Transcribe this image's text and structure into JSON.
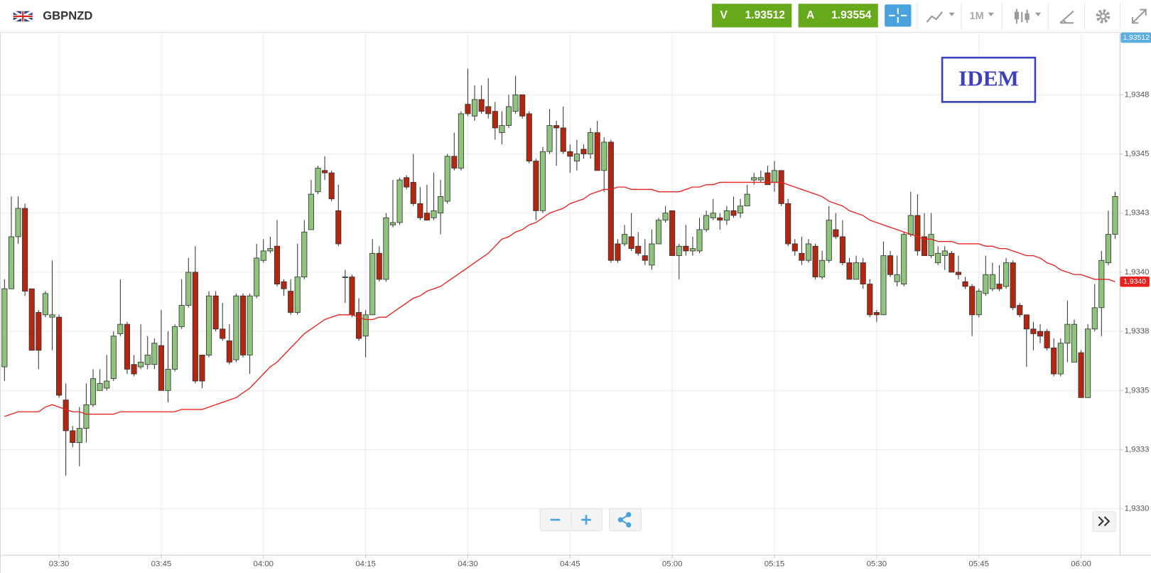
{
  "header": {
    "symbol": "GBPNZD",
    "sell": {
      "label": "V",
      "price": "1.93512"
    },
    "buy": {
      "label": "A",
      "price": "1.93554"
    },
    "timeframe": "1M"
  },
  "chart_data": {
    "type": "candlestick",
    "categories": [
      null,
      null,
      null,
      null,
      null,
      null,
      null,
      null,
      "03:30",
      null,
      null,
      null,
      null,
      null,
      null,
      null,
      null,
      null,
      null,
      null,
      null,
      null,
      null,
      "03:45",
      null,
      null,
      null,
      null,
      null,
      null,
      null,
      null,
      null,
      null,
      null,
      null,
      null,
      null,
      "04:00",
      null,
      null,
      null,
      null,
      null,
      null,
      null,
      null,
      null,
      null,
      null,
      null,
      null,
      null,
      "04:15",
      null,
      null,
      null,
      null,
      null,
      null,
      null,
      null,
      null,
      null,
      null,
      null,
      null,
      null,
      "04:30",
      null,
      null,
      null,
      null,
      null,
      null,
      null,
      null,
      null,
      null,
      null,
      null,
      null,
      null,
      "04:45",
      null,
      null,
      null,
      null,
      null,
      null,
      null,
      null,
      null,
      null,
      null,
      null,
      null,
      null,
      "05:00",
      null,
      null,
      null,
      null,
      null,
      null,
      null,
      null,
      null,
      null,
      null,
      null,
      null,
      null,
      "05:15",
      null,
      null,
      null,
      null,
      null,
      null,
      null,
      null,
      null,
      null,
      null,
      null,
      null,
      null,
      "05:30",
      null,
      null,
      null,
      null,
      null,
      null,
      null,
      null,
      null,
      null,
      null,
      null,
      null,
      null,
      "05:45",
      null,
      null,
      null,
      null,
      null,
      null,
      null,
      null,
      null,
      null,
      null,
      null,
      null,
      null,
      "06:00",
      null,
      null,
      null,
      null,
      null
    ],
    "open": [
      1.9336,
      1.93393,
      1.93415,
      1.93427,
      1.93393,
      1.93383,
      1.93382,
      1.93381,
      1.93381,
      1.93346,
      1.93333,
      1.93328,
      1.93334,
      1.93344,
      1.9335,
      1.93351,
      1.93355,
      1.93374,
      1.93378,
      1.93361,
      1.9336,
      1.93361,
      1.93361,
      1.93369,
      1.9335,
      1.93359,
      1.93377,
      1.93386,
      1.934,
      1.93365,
      1.93365,
      1.9339,
      1.93376,
      1.93371,
      1.93363,
      1.9339,
      1.93365,
      1.9339,
      1.93405,
      1.93409,
      1.93411,
      1.93396,
      1.93392,
      1.93383,
      1.93398,
      1.93418,
      1.93434,
      1.93443,
      1.93442,
      1.93426,
      1.93398,
      1.93398,
      1.93383,
      1.93373,
      1.93382,
      1.93408,
      1.93397,
      1.9342,
      1.93421,
      1.9344,
      1.93438,
      1.93429,
      1.93425,
      1.93423,
      1.93425,
      1.9343,
      1.93449,
      1.93444,
      1.93471,
      1.93466,
      1.93473,
      1.9347,
      1.93468,
      1.93459,
      1.93462,
      1.93468,
      1.93475,
      1.93467,
      1.93447,
      1.93426,
      1.93451,
      1.93462,
      1.93461,
      1.93451,
      1.93447,
      1.93452,
      1.9345,
      1.93459,
      1.93443,
      1.93455,
      1.93412,
      1.93412,
      1.93415,
      1.93411,
      1.93407,
      1.93403,
      1.93412,
      1.93422,
      1.93426,
      1.93407,
      1.93411,
      1.93409,
      1.93409,
      1.93418,
      1.93423,
      1.93423,
      1.93422,
      1.93426,
      1.93425,
      1.93428,
      1.93439,
      1.93439,
      1.93442,
      1.93438,
      1.93443,
      1.93429,
      1.93412,
      1.93408,
      1.93405,
      1.93411,
      1.93398,
      1.93405,
      1.93418,
      1.93415,
      1.93404,
      1.93397,
      1.93404,
      1.93395,
      1.93383,
      1.93382,
      1.93407,
      1.93396,
      1.93395,
      1.93416,
      1.93424,
      1.93415,
      1.93407,
      1.93404,
      1.93407,
      1.93408,
      1.934,
      1.93396,
      1.93394,
      1.93382,
      1.93391,
      1.93393,
      1.93395,
      1.93394,
      1.93404,
      1.93386,
      1.93382,
      1.93376,
      1.93375,
      1.93375,
      1.93368,
      1.93357,
      1.9337,
      1.93362,
      1.93366,
      1.93347,
      1.93376,
      1.93385,
      1.93404,
      1.93416
    ],
    "high": [
      1.93397,
      1.93432,
      1.93432,
      1.93429,
      1.93393,
      1.93384,
      1.93392,
      1.93405,
      1.93382,
      1.93353,
      1.93335,
      1.93343,
      1.93353,
      1.93359,
      1.93359,
      1.93365,
      1.93375,
      1.93397,
      1.93379,
      1.93365,
      1.93378,
      1.93373,
      1.93372,
      1.93384,
      1.93375,
      1.93378,
      1.93397,
      1.93406,
      1.93411,
      1.93365,
      1.93392,
      1.93392,
      1.93387,
      1.93378,
      1.93391,
      1.93391,
      1.93391,
      1.93412,
      1.93414,
      1.93415,
      1.93422,
      1.93397,
      1.93397,
      1.93412,
      1.93422,
      1.93439,
      1.93445,
      1.93449,
      1.93443,
      1.93437,
      1.93401,
      1.93399,
      1.93389,
      1.93384,
      1.93414,
      1.93411,
      1.93425,
      1.93439,
      1.9344,
      1.93441,
      1.9345,
      1.93436,
      1.93437,
      1.93442,
      1.93439,
      1.9345,
      1.93459,
      1.93468,
      1.93486,
      1.93479,
      1.93479,
      1.93482,
      1.93472,
      1.93468,
      1.93475,
      1.93483,
      1.93475,
      1.93468,
      1.93448,
      1.93453,
      1.93469,
      1.93464,
      1.9347,
      1.93454,
      1.93456,
      1.93454,
      1.93461,
      1.93464,
      1.93457,
      1.93456,
      1.93414,
      1.9342,
      1.93425,
      1.93417,
      1.93414,
      1.93418,
      1.93423,
      1.93428,
      1.93426,
      1.93412,
      1.9342,
      1.93415,
      1.93423,
      1.93426,
      1.93431,
      1.93425,
      1.93428,
      1.93432,
      1.93431,
      1.93437,
      1.93442,
      1.93443,
      1.93445,
      1.93447,
      1.93443,
      1.93431,
      1.93414,
      1.93415,
      1.93414,
      1.93412,
      1.93409,
      1.93428,
      1.93425,
      1.93422,
      1.93406,
      1.93407,
      1.93406,
      1.93397,
      1.93384,
      1.93413,
      1.93409,
      1.93407,
      1.93417,
      1.93434,
      1.93433,
      1.93425,
      1.93425,
      1.93411,
      1.93411,
      1.93409,
      1.93407,
      1.93398,
      1.93395,
      1.93393,
      1.93407,
      1.93404,
      1.93403,
      1.93406,
      1.93405,
      1.93387,
      1.93382,
      1.93379,
      1.93378,
      1.93376,
      1.93372,
      1.93372,
      1.93388,
      1.9338,
      1.93367,
      1.93378,
      1.93395,
      1.93409,
      1.93426,
      1.93434
    ],
    "low": [
      1.93354,
      1.93393,
      1.93412,
      1.9339,
      1.93367,
      1.93359,
      1.93381,
      1.93367,
      1.93347,
      1.93314,
      1.93326,
      1.93318,
      1.93328,
      1.93343,
      1.9335,
      1.9335,
      1.93354,
      1.93373,
      1.93357,
      1.93356,
      1.93359,
      1.93359,
      1.93359,
      1.9335,
      1.93345,
      1.93358,
      1.93376,
      1.93385,
      1.93353,
      1.93351,
      1.93364,
      1.93375,
      1.93371,
      1.93361,
      1.93362,
      1.93364,
      1.93357,
      1.93389,
      1.93404,
      1.93408,
      1.93394,
      1.9339,
      1.93382,
      1.93382,
      1.93397,
      1.93418,
      1.93433,
      1.93439,
      1.9343,
      1.93411,
      1.93387,
      1.93381,
      1.93371,
      1.93364,
      1.93382,
      1.93396,
      1.93396,
      1.93419,
      1.9342,
      1.93435,
      1.93428,
      1.93422,
      1.93422,
      1.93422,
      1.93416,
      1.93429,
      1.93443,
      1.93443,
      1.93466,
      1.93464,
      1.93467,
      1.93465,
      1.93456,
      1.93454,
      1.93461,
      1.93467,
      1.93465,
      1.93446,
      1.93422,
      1.93425,
      1.9345,
      1.93445,
      1.9345,
      1.93442,
      1.93443,
      1.93448,
      1.93448,
      1.93443,
      1.93434,
      1.93404,
      1.93404,
      1.93411,
      1.93409,
      1.93407,
      1.93403,
      1.93401,
      1.93412,
      1.93421,
      1.93407,
      1.93397,
      1.93407,
      1.93407,
      1.93408,
      1.93417,
      1.93422,
      1.93418,
      1.9342,
      1.93423,
      1.93423,
      1.93428,
      1.93437,
      1.93438,
      1.93437,
      1.93434,
      1.93428,
      1.93411,
      1.93407,
      1.93403,
      1.93404,
      1.93397,
      1.93397,
      1.93404,
      1.93414,
      1.93403,
      1.93397,
      1.93397,
      1.93393,
      1.93381,
      1.93379,
      1.93382,
      1.93398,
      1.93394,
      1.93394,
      1.93415,
      1.93407,
      1.93407,
      1.93406,
      1.93403,
      1.93401,
      1.934,
      1.93397,
      1.93393,
      1.93373,
      1.93381,
      1.9339,
      1.93392,
      1.93392,
      1.93393,
      1.93384,
      1.93381,
      1.9336,
      1.93367,
      1.9337,
      1.93367,
      1.93356,
      1.93356,
      1.93362,
      1.93362,
      1.93347,
      1.93347,
      1.93375,
      1.93373,
      1.93403,
      1.93414
    ],
    "close": [
      1.93393,
      1.93415,
      1.93427,
      1.93392,
      1.93367,
      1.93367,
      1.93391,
      1.93382,
      1.93348,
      1.93333,
      1.93328,
      1.93334,
      1.93344,
      1.93355,
      1.93353,
      1.93354,
      1.93373,
      1.93378,
      1.93359,
      1.93357,
      1.93362,
      1.93365,
      1.9337,
      1.9335,
      1.93359,
      1.93377,
      1.93386,
      1.934,
      1.93354,
      1.93354,
      1.9339,
      1.93376,
      1.93372,
      1.93362,
      1.9339,
      1.93365,
      1.9339,
      1.93406,
      1.93409,
      1.9341,
      1.93395,
      1.93393,
      1.93383,
      1.93398,
      1.93417,
      1.93433,
      1.93444,
      1.93442,
      1.93431,
      1.93412,
      1.93398,
      1.93382,
      1.93372,
      1.93382,
      1.93408,
      1.93397,
      1.93423,
      1.93421,
      1.93439,
      1.93436,
      1.93429,
      1.93423,
      1.93422,
      1.93426,
      1.93432,
      1.93449,
      1.93444,
      1.93467,
      1.93467,
      1.93473,
      1.93468,
      1.93467,
      1.93461,
      1.93462,
      1.9347,
      1.93475,
      1.93466,
      1.93447,
      1.93426,
      1.93451,
      1.93462,
      1.93461,
      1.93451,
      1.93449,
      1.9345,
      1.9345,
      1.93459,
      1.93443,
      1.93455,
      1.93405,
      1.93405,
      1.93416,
      1.9341,
      1.93408,
      1.93405,
      1.93412,
      1.93422,
      1.93425,
      1.93407,
      1.93411,
      1.93409,
      1.9341,
      1.93418,
      1.93424,
      1.93425,
      1.93422,
      1.93426,
      1.93424,
      1.93428,
      1.93433,
      1.9344,
      1.9344,
      1.93437,
      1.93443,
      1.93429,
      1.93412,
      1.93409,
      1.93405,
      1.93412,
      1.93398,
      1.93405,
      1.93422,
      1.93415,
      1.93404,
      1.93397,
      1.93404,
      1.93395,
      1.93382,
      1.93382,
      1.93407,
      1.93399,
      1.93399,
      1.93416,
      1.93424,
      1.93409,
      1.93407,
      1.93416,
      1.93408,
      1.93409,
      1.934,
      1.93399,
      1.93394,
      1.93382,
      1.93392,
      1.93399,
      1.93399,
      1.93393,
      1.93404,
      1.93385,
      1.93382,
      1.93376,
      1.93374,
      1.93373,
      1.93368,
      1.93357,
      1.9337,
      1.93378,
      1.93378,
      1.93347,
      1.93376,
      1.93385,
      1.93405,
      1.93416,
      1.93432
    ],
    "up_color": "#8ec47b",
    "down_color": "#b3270f",
    "ma": {
      "color": "#e8211d",
      "values": [
        1.93339,
        1.9334,
        1.93341,
        1.93341,
        1.93341,
        1.93341,
        1.93343,
        1.93344,
        1.93343,
        1.93342,
        1.93341,
        1.93341,
        1.9334,
        1.9334,
        1.9334,
        1.9334,
        1.9334,
        1.93341,
        1.93341,
        1.93341,
        1.93341,
        1.93341,
        1.93341,
        1.93341,
        1.93341,
        1.93341,
        1.93342,
        1.93342,
        1.93342,
        1.93342,
        1.93343,
        1.93344,
        1.93345,
        1.93346,
        1.93347,
        1.93349,
        1.93351,
        1.93354,
        1.93357,
        1.9336,
        1.93362,
        1.93365,
        1.93368,
        1.93371,
        1.93374,
        1.93376,
        1.93378,
        1.9338,
        1.93381,
        1.93382,
        1.93382,
        1.93382,
        1.93381,
        1.9338,
        1.9338,
        1.93381,
        1.93381,
        1.93383,
        1.93385,
        1.93387,
        1.93389,
        1.9339,
        1.93392,
        1.93393,
        1.93394,
        1.93396,
        1.93398,
        1.934,
        1.93402,
        1.93404,
        1.93406,
        1.93408,
        1.93411,
        1.93414,
        1.93415,
        1.93417,
        1.93418,
        1.9342,
        1.93421,
        1.93423,
        1.93425,
        1.93426,
        1.93427,
        1.93429,
        1.9343,
        1.93431,
        1.93433,
        1.93434,
        1.93435,
        1.93435,
        1.93436,
        1.93436,
        1.93435,
        1.93435,
        1.93435,
        1.93435,
        1.93434,
        1.93434,
        1.93434,
        1.93434,
        1.93435,
        1.93436,
        1.93436,
        1.93437,
        1.93437,
        1.93438,
        1.93438,
        1.93438,
        1.93438,
        1.93438,
        1.93438,
        1.93438,
        1.93438,
        1.93438,
        1.93438,
        1.93437,
        1.93436,
        1.93435,
        1.93434,
        1.93433,
        1.93432,
        1.9343,
        1.93429,
        1.93428,
        1.93426,
        1.93425,
        1.93424,
        1.93422,
        1.93421,
        1.9342,
        1.93419,
        1.93418,
        1.93417,
        1.93416,
        1.93415,
        1.93414,
        1.93414,
        1.93413,
        1.93413,
        1.93413,
        1.93412,
        1.93412,
        1.93412,
        1.93412,
        1.93411,
        1.93411,
        1.9341,
        1.9341,
        1.93409,
        1.93408,
        1.93407,
        1.93407,
        1.93406,
        1.93404,
        1.93403,
        1.93401,
        1.934,
        1.93399,
        1.93399,
        1.93398,
        1.93397,
        1.93397,
        1.93397,
        1.93396
      ]
    },
    "ylim": [
      1.93281,
      1.93501
    ],
    "yticks": [
      {
        "value": 1.933,
        "label": "1,9330"
      },
      {
        "value": 1.93325,
        "label": "1,9333"
      },
      {
        "value": 1.9335,
        "label": "1,9335"
      },
      {
        "value": 1.93375,
        "label": "1,9338"
      },
      {
        "value": 1.934,
        "label": "1,9340"
      },
      {
        "value": 1.93425,
        "label": "1,9343"
      },
      {
        "value": 1.9345,
        "label": "1,9345"
      },
      {
        "value": 1.93475,
        "label": "1,9348"
      }
    ],
    "grid": true,
    "price_label": "1,93512",
    "ma_label": "1,9340",
    "annotation": "IDEM"
  }
}
